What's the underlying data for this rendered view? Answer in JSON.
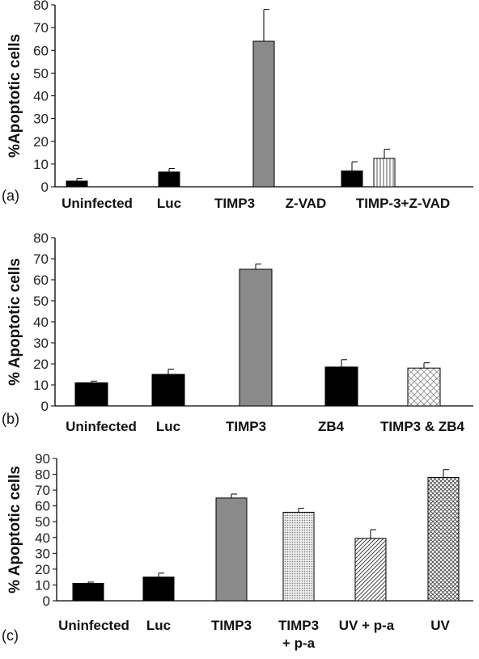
{
  "chart_data": [
    {
      "type": "bar",
      "panel_label": "(a)",
      "ylabel": "%Apoptotic cells",
      "ylim": [
        0,
        80
      ],
      "yticks": [
        0,
        10,
        20,
        30,
        40,
        50,
        60,
        70,
        80
      ],
      "categories": [
        "Uninfected",
        "Luc",
        "TIMP3",
        "Z-VAD",
        "TIMP-3+Z-VAD"
      ],
      "values": [
        2.5,
        6.5,
        64,
        7,
        12.5
      ],
      "errors": [
        1.2,
        1.5,
        14,
        4,
        4
      ],
      "fills": [
        "solid-black",
        "solid-black",
        "solid-gray",
        "solid-black",
        "vertical-lines"
      ]
    },
    {
      "type": "bar",
      "panel_label": "(b)",
      "ylabel": "% Apoptotic cells",
      "ylim": [
        0,
        80
      ],
      "yticks": [
        0,
        10,
        20,
        30,
        40,
        50,
        60,
        70,
        80
      ],
      "categories": [
        "Uninfected",
        "Luc",
        "TIMP3",
        "ZB4",
        "TIMP3 & ZB4"
      ],
      "values": [
        11,
        15,
        65,
        18.5,
        18
      ],
      "errors": [
        0.8,
        2.5,
        2.5,
        3.5,
        2.5
      ],
      "fills": [
        "solid-black",
        "solid-black",
        "solid-gray",
        "solid-black",
        "light-crosshatch"
      ]
    },
    {
      "type": "bar",
      "panel_label": "(c)",
      "ylabel": "% Apoptotic cells",
      "ylim": [
        0,
        90
      ],
      "yticks": [
        0,
        10,
        20,
        30,
        40,
        50,
        60,
        70,
        80,
        90
      ],
      "categories": [
        "Uninfected",
        "Luc",
        "TIMP3",
        "TIMP3\n+ p-a",
        "UV + p-a",
        "UV"
      ],
      "values": [
        11,
        15,
        65,
        56,
        39.5,
        78
      ],
      "errors": [
        0.8,
        2.5,
        2.5,
        2.5,
        5.5,
        5
      ],
      "fills": [
        "solid-black",
        "solid-black",
        "solid-gray",
        "dots",
        "diagonal-lines",
        "crosshatch"
      ]
    }
  ],
  "colors": {
    "black": "#000000",
    "gray": "#8a8a8a",
    "axis": "#000000"
  }
}
